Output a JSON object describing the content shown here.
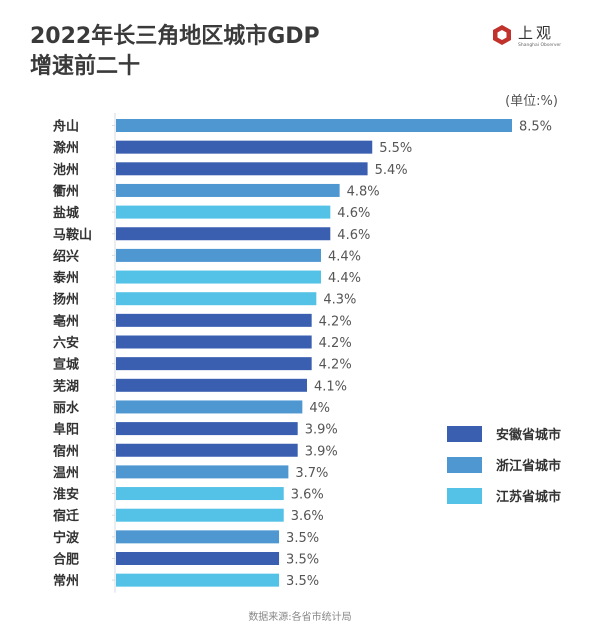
{
  "title_line1": "2022年长三角地区城市GDP",
  "title_line2": "增速前二十",
  "logo": {
    "cn": "上观",
    "en": "Shanghai Observer",
    "icon": "shanghai-observer-logo-icon"
  },
  "unit": "(单位:%)",
  "source": "数据来源:各省市统计局",
  "colors": {
    "anhui": "#3a5fb0",
    "zhejiang": "#4e97d1",
    "jiangsu": "#54c2e6"
  },
  "legend": [
    {
      "key": "anhui",
      "label": "安徽省城市"
    },
    {
      "key": "zhejiang",
      "label": "浙江省城市"
    },
    {
      "key": "jiangsu",
      "label": "江苏省城市"
    }
  ],
  "chart_data": {
    "type": "bar",
    "orientation": "horizontal",
    "title": "2022年长三角地区城市GDP增速前二十",
    "unit": "%",
    "xlim": [
      0,
      8.5
    ],
    "grid": false,
    "legend_position": "right",
    "categories": [
      "舟山",
      "滁州",
      "池州",
      "衢州",
      "盐城",
      "马鞍山",
      "绍兴",
      "泰州",
      "扬州",
      "亳州",
      "六安",
      "宣城",
      "芜湖",
      "丽水",
      "阜阳",
      "宿州",
      "温州",
      "淮安",
      "宿迁",
      "宁波",
      "合肥",
      "常州"
    ],
    "values": [
      8.5,
      5.5,
      5.4,
      4.8,
      4.6,
      4.6,
      4.4,
      4.4,
      4.3,
      4.2,
      4.2,
      4.2,
      4.1,
      4,
      3.9,
      3.9,
      3.7,
      3.6,
      3.6,
      3.5,
      3.5,
      3.5
    ],
    "labels": [
      "8.5%",
      "5.5%",
      "5.4%",
      "4.8%",
      "4.6%",
      "4.6%",
      "4.4%",
      "4.4%",
      "4.3%",
      "4.2%",
      "4.2%",
      "4.2%",
      "4.1%",
      "4%",
      "3.9%",
      "3.9%",
      "3.7%",
      "3.6%",
      "3.6%",
      "3.5%",
      "3.5%",
      "3.5%"
    ],
    "groups": [
      "zhejiang",
      "anhui",
      "anhui",
      "zhejiang",
      "jiangsu",
      "anhui",
      "zhejiang",
      "jiangsu",
      "jiangsu",
      "anhui",
      "anhui",
      "anhui",
      "anhui",
      "zhejiang",
      "anhui",
      "anhui",
      "zhejiang",
      "jiangsu",
      "jiangsu",
      "zhejiang",
      "anhui",
      "jiangsu"
    ]
  }
}
